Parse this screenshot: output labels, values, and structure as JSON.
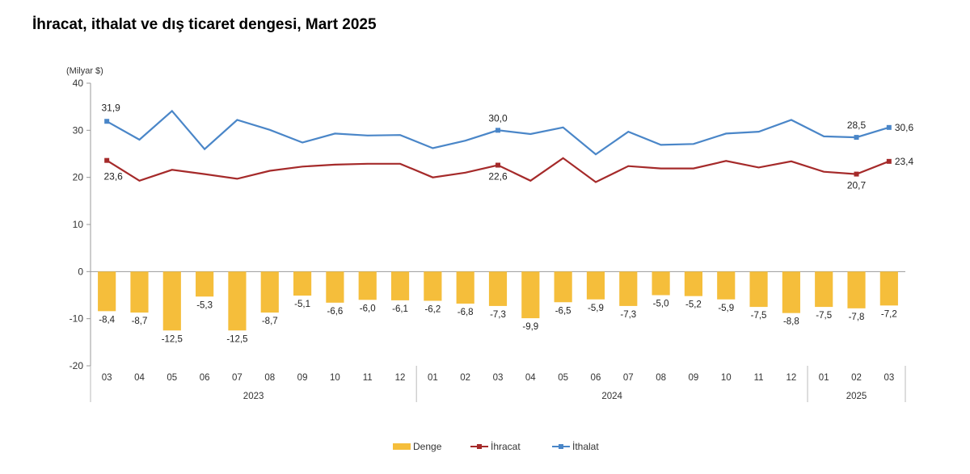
{
  "title": "İhracat, ithalat ve dış ticaret dengesi, Mart 2025",
  "chart_data": {
    "type": "bar+line",
    "unit_label": "(Milyar $)",
    "ylim": [
      -20,
      40
    ],
    "yticks": [
      -20,
      -10,
      0,
      10,
      20,
      30,
      40
    ],
    "categories": [
      "03",
      "04",
      "05",
      "06",
      "07",
      "08",
      "09",
      "10",
      "11",
      "12",
      "01",
      "02",
      "03",
      "04",
      "05",
      "06",
      "07",
      "08",
      "09",
      "10",
      "11",
      "12",
      "01",
      "02",
      "03"
    ],
    "year_groups": [
      {
        "label": "2023",
        "start": 0,
        "end": 9
      },
      {
        "label": "2024",
        "start": 10,
        "end": 21
      },
      {
        "label": "2025",
        "start": 22,
        "end": 24
      }
    ],
    "series": [
      {
        "name": "Denge",
        "kind": "bar",
        "color": "#F5BE3B",
        "values": [
          -8.4,
          -8.7,
          -12.5,
          -5.3,
          -12.5,
          -8.7,
          -5.1,
          -6.6,
          -6.0,
          -6.1,
          -6.2,
          -6.8,
          -7.3,
          -9.9,
          -6.5,
          -5.9,
          -7.3,
          -5.0,
          -5.2,
          -5.9,
          -7.5,
          -8.8,
          -7.5,
          -7.8,
          -7.2
        ],
        "labels": [
          "-8,4",
          "-8,7",
          "-12,5",
          "-5,3",
          "-12,5",
          "-8,7",
          "-5,1",
          "-6,6",
          "-6,0",
          "-6,1",
          "-6,2",
          "-6,8",
          "-7,3",
          "-9,9",
          "-6,5",
          "-5,9",
          "-7,3",
          "-5,0",
          "-5,2",
          "-5,9",
          "-7,5",
          "-8,8",
          "-7,5",
          "-7,8",
          "-7,2"
        ]
      },
      {
        "name": "İhracat",
        "kind": "line",
        "color": "#A52A2A",
        "values": [
          23.6,
          19.3,
          21.6,
          20.7,
          19.7,
          21.4,
          22.3,
          22.7,
          22.9,
          22.9,
          20.0,
          21.0,
          22.6,
          19.3,
          24.1,
          19.0,
          22.4,
          21.9,
          21.9,
          23.5,
          22.1,
          23.4,
          21.2,
          20.7,
          23.4
        ],
        "labeled": [
          {
            "index": 0,
            "text": "23,6"
          },
          {
            "index": 12,
            "text": "22,6"
          },
          {
            "index": 23,
            "text": "20,7"
          },
          {
            "index": 24,
            "text": "23,4"
          }
        ]
      },
      {
        "name": "İthalat",
        "kind": "line",
        "color": "#4A86C8",
        "values": [
          31.9,
          28.0,
          34.1,
          26.0,
          32.2,
          30.1,
          27.4,
          29.3,
          28.9,
          29.0,
          26.2,
          27.8,
          30.0,
          29.2,
          30.6,
          24.9,
          29.7,
          26.9,
          27.1,
          29.3,
          29.7,
          32.2,
          28.7,
          28.5,
          30.6
        ],
        "labeled": [
          {
            "index": 0,
            "text": "31,9"
          },
          {
            "index": 12,
            "text": "30,0"
          },
          {
            "index": 23,
            "text": "28,5"
          },
          {
            "index": 24,
            "text": "30,6"
          }
        ]
      }
    ],
    "legend": [
      "Denge",
      "İhracat",
      "İthalat"
    ],
    "legend_position": "bottom",
    "grid": false
  }
}
